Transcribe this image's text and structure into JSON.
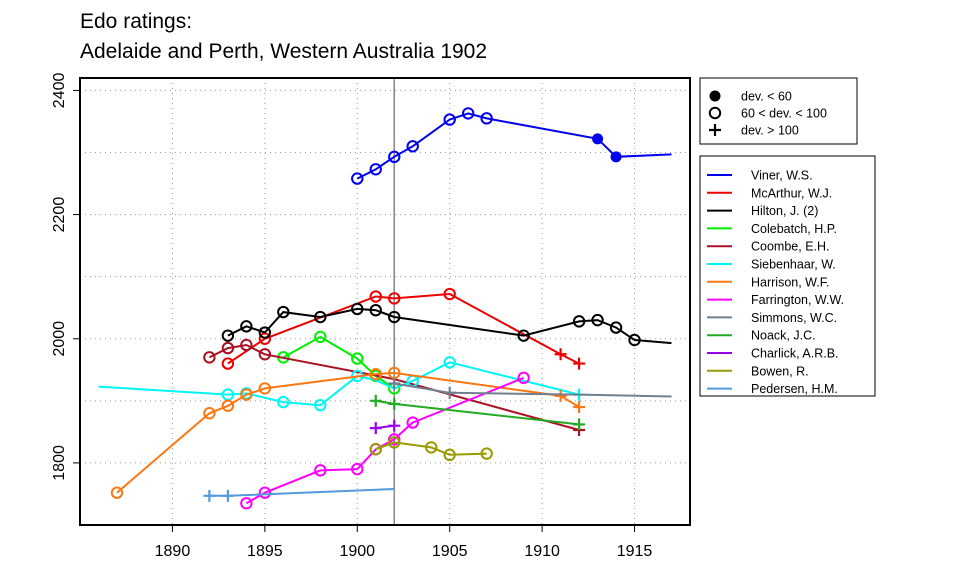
{
  "chart_data": {
    "type": "line",
    "title_lines": [
      "Edo ratings:",
      "Adelaide and Perth, Western Australia 1902"
    ],
    "xlabel": "",
    "ylabel": "",
    "xlim": [
      1885,
      1918
    ],
    "ylim": [
      1700,
      2420
    ],
    "x_ticks": [
      1890,
      1895,
      1900,
      1905,
      1910,
      1915
    ],
    "y_ticks": [
      1800,
      2000,
      2200,
      2400
    ],
    "grid": "dotted",
    "reference_line_x": 1902,
    "legend_position": "right",
    "marker_legend": [
      {
        "marker": "dot",
        "label": "dev. < 60"
      },
      {
        "marker": "circle",
        "label": "60 < dev. < 100"
      },
      {
        "marker": "plus",
        "label": "dev. > 100"
      }
    ],
    "series": [
      {
        "name": "Viner, W.S.",
        "color": "#0000ee",
        "points": [
          [
            1900,
            2258,
            "circle"
          ],
          [
            1901,
            2273,
            "circle"
          ],
          [
            1902,
            2293,
            "circle"
          ],
          [
            1903,
            2310,
            "circle"
          ],
          [
            1905,
            2353,
            "circle"
          ],
          [
            1906,
            2363,
            "circle"
          ],
          [
            1907,
            2355,
            "circle"
          ],
          [
            1913,
            2322,
            "dot"
          ],
          [
            1914,
            2293,
            "dot"
          ],
          [
            1917,
            2297,
            "none"
          ]
        ]
      },
      {
        "name": "McArthur, W.J.",
        "color": "#ee0000",
        "points": [
          [
            1893,
            1960,
            "circle"
          ],
          [
            1895,
            2000,
            "circle"
          ],
          [
            1901,
            2068,
            "circle"
          ],
          [
            1902,
            2065,
            "circle"
          ],
          [
            1905,
            2072,
            "circle"
          ],
          [
            1911,
            1975,
            "plus"
          ],
          [
            1912,
            1960,
            "plus"
          ]
        ]
      },
      {
        "name": "Hilton, J. (2)",
        "color": "#000000",
        "points": [
          [
            1893,
            2005,
            "circle"
          ],
          [
            1894,
            2020,
            "circle"
          ],
          [
            1895,
            2010,
            "circle"
          ],
          [
            1896,
            2043,
            "circle"
          ],
          [
            1898,
            2035,
            "circle"
          ],
          [
            1900,
            2048,
            "circle"
          ],
          [
            1901,
            2046,
            "circle"
          ],
          [
            1902,
            2035,
            "circle"
          ],
          [
            1909,
            2005,
            "circle"
          ],
          [
            1912,
            2028,
            "circle"
          ],
          [
            1913,
            2030,
            "circle"
          ],
          [
            1914,
            2018,
            "circle"
          ],
          [
            1915,
            1998,
            "circle"
          ],
          [
            1917,
            1993,
            "none"
          ]
        ]
      },
      {
        "name": "Colebatch, H.P.",
        "color": "#00ee00",
        "points": [
          [
            1896,
            1970,
            "circle"
          ],
          [
            1898,
            2003,
            "circle"
          ],
          [
            1900,
            1968,
            "circle"
          ],
          [
            1901,
            1940,
            "circle"
          ],
          [
            1902,
            1920,
            "circle"
          ]
        ]
      },
      {
        "name": "Coombe, E.H.",
        "color": "#aa1122",
        "points": [
          [
            1892,
            1970,
            "circle"
          ],
          [
            1893,
            1985,
            "circle"
          ],
          [
            1894,
            1990,
            "circle"
          ],
          [
            1895,
            1975,
            "circle"
          ],
          [
            1902,
            1935,
            "none"
          ],
          [
            1912,
            1853,
            "plus"
          ]
        ]
      },
      {
        "name": "Siebenhaar, W.",
        "color": "#00f5f5",
        "points": [
          [
            1886,
            1923,
            "none"
          ],
          [
            1893,
            1910,
            "circle"
          ],
          [
            1894,
            1912,
            "circle"
          ],
          [
            1896,
            1898,
            "circle"
          ],
          [
            1898,
            1893,
            "circle"
          ],
          [
            1900,
            1940,
            "circle"
          ],
          [
            1901,
            1933,
            "none"
          ],
          [
            1902,
            1920,
            "none"
          ],
          [
            1903,
            1932,
            "circle"
          ],
          [
            1905,
            1962,
            "circle"
          ],
          [
            1912,
            1910,
            "plus"
          ]
        ]
      },
      {
        "name": "Harrison, W.F.",
        "color": "#ff7711",
        "points": [
          [
            1887,
            1752,
            "circle"
          ],
          [
            1892,
            1880,
            "circle"
          ],
          [
            1893,
            1892,
            "circle"
          ],
          [
            1894,
            1910,
            "circle"
          ],
          [
            1895,
            1920,
            "circle"
          ],
          [
            1901,
            1943,
            "circle"
          ],
          [
            1902,
            1945,
            "circle"
          ],
          [
            1911,
            1908,
            "plus"
          ],
          [
            1912,
            1890,
            "plus"
          ]
        ]
      },
      {
        "name": "Farrington, W.W.",
        "color": "#ff00ff",
        "points": [
          [
            1894,
            1735,
            "circle"
          ],
          [
            1895,
            1752,
            "circle"
          ],
          [
            1898,
            1788,
            "circle"
          ],
          [
            1900,
            1790,
            "circle"
          ],
          [
            1901,
            1822,
            "circle"
          ],
          [
            1902,
            1838,
            "circle"
          ],
          [
            1903,
            1865,
            "circle"
          ],
          [
            1909,
            1937,
            "circle"
          ]
        ]
      },
      {
        "name": "Simmons, W.C.",
        "color": "#708090",
        "points": [
          [
            1902,
            1928,
            "plus"
          ],
          [
            1905,
            1913,
            "plus"
          ],
          [
            1912,
            1910,
            "none"
          ],
          [
            1917,
            1907,
            "none"
          ]
        ]
      },
      {
        "name": "Noack, J.C.",
        "color": "#22aa22",
        "points": [
          [
            1901,
            1900,
            "plus"
          ],
          [
            1902,
            1895,
            "plus"
          ],
          [
            1912,
            1862,
            "plus"
          ]
        ]
      },
      {
        "name": "Charlick, A.R.B.",
        "color": "#9900ee",
        "points": [
          [
            1901,
            1856,
            "plus"
          ],
          [
            1902,
            1860,
            "plus"
          ]
        ]
      },
      {
        "name": "Bowen, R.",
        "color": "#999900",
        "points": [
          [
            1901,
            1822,
            "circle"
          ],
          [
            1902,
            1833,
            "circle"
          ],
          [
            1904,
            1825,
            "circle"
          ],
          [
            1905,
            1813,
            "circle"
          ],
          [
            1907,
            1815,
            "circle"
          ]
        ]
      },
      {
        "name": "Pedersen, H.M.",
        "color": "#5599dd",
        "points": [
          [
            1892,
            1747,
            "plus"
          ],
          [
            1893,
            1747,
            "plus"
          ],
          [
            1902,
            1758,
            "none"
          ]
        ]
      }
    ]
  }
}
